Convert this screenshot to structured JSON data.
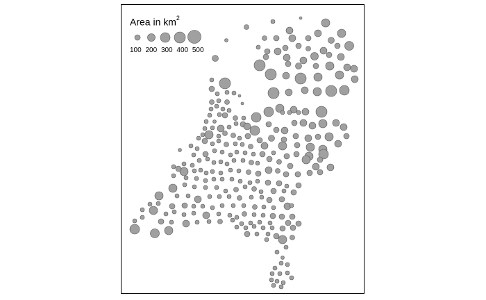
{
  "legend": {
    "title": "Area in km",
    "title_superscript": "2",
    "labels": [
      "100",
      "200",
      "300",
      "400",
      "500"
    ]
  },
  "colors": {
    "symbol_fill": "#a0a0a0",
    "symbol_stroke": "#555555",
    "frame": "#000000",
    "background": "#ffffff"
  }
}
